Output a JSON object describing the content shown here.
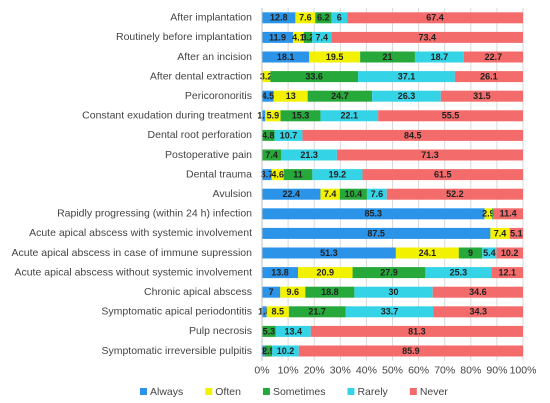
{
  "chart_data": {
    "type": "stacked-bar-horizontal",
    "categories": [
      "After implantation",
      "Routinely before implantation",
      "After an incision",
      "After dental extraction",
      "Pericoronoritis",
      "Constant exudation during treatment",
      "Dental root perforation",
      "Postoperative pain",
      "Dental trauma",
      "Avulsion",
      "Rapidly progressing (within 24 h) infection",
      "Acute apical abscess with systemic involvement",
      "Acute apical abscess in case of immune supression",
      "Acute apical abscess without systemic involvement",
      "Chronic apical abscess",
      "Symptomatic apical periodontitis",
      "Pulp necrosis",
      "Symptomatic irreversible pulpitis"
    ],
    "series": [
      {
        "name": "Always",
        "color": "#2b93e8",
        "values": [
          12.8,
          11.9,
          18.1,
          0,
          4.5,
          1.2,
          0,
          0,
          3.7,
          22.4,
          85.3,
          87.5,
          51.3,
          13.8,
          7,
          1.8,
          0,
          1.0
        ]
      },
      {
        "name": "Often",
        "color": "#f2f200",
        "values": [
          7.6,
          4.1,
          19.5,
          3.2,
          13,
          5.9,
          0,
          0,
          4.6,
          7.4,
          2.9,
          7.4,
          24.1,
          20.9,
          9.6,
          8.5,
          0,
          0
        ]
      },
      {
        "name": "Sometimes",
        "color": "#26a83a",
        "values": [
          6.2,
          3.2,
          21,
          33.6,
          24.7,
          15.3,
          4.8,
          7.4,
          11.0,
          10.4,
          0.4,
          0,
          9.0,
          27.9,
          18.8,
          21.7,
          5.3,
          2.9
        ]
      },
      {
        "name": "Rarely",
        "color": "#35d3e6",
        "values": [
          6,
          7.4,
          18.7,
          37.1,
          26.3,
          22.1,
          10.7,
          21.3,
          19.2,
          7.6,
          0,
          0,
          5.4,
          25.3,
          30,
          33.7,
          13.4,
          10.2
        ]
      },
      {
        "name": "Never",
        "color": "#f46b6b",
        "values": [
          67.4,
          73.4,
          22.7,
          26.1,
          31.5,
          55.5,
          84.5,
          71.3,
          61.5,
          52.2,
          11.4,
          5.1,
          10.2,
          12.1,
          34.6,
          34.3,
          81.3,
          85.9
        ]
      }
    ],
    "xlim": [
      0,
      100
    ],
    "xticks": [
      {
        "value": 0,
        "label": "0%"
      },
      {
        "value": 10,
        "label": "10%"
      },
      {
        "value": 20,
        "label": "20%"
      },
      {
        "value": 30,
        "label": "30%"
      },
      {
        "value": 40,
        "label": "40%"
      },
      {
        "value": 50,
        "label": "50%"
      },
      {
        "value": 60,
        "label": "60%"
      },
      {
        "value": 70,
        "label": "70%"
      },
      {
        "value": 80,
        "label": "80%"
      },
      {
        "value": 90,
        "label": "90%"
      },
      {
        "value": 100,
        "label": "100%"
      }
    ],
    "grid": true
  }
}
